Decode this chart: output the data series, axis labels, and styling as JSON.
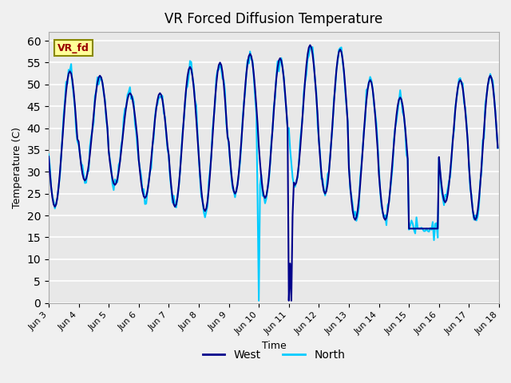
{
  "title": "VR Forced Diffusion Temperature",
  "ylabel": "Temperature (C)",
  "xlabel": "Time",
  "ylim": [
    0,
    62
  ],
  "xlim": [
    0,
    360
  ],
  "label_box_text": "VR_fd",
  "label_box_bg": "#FFFF99",
  "label_box_fg": "#990000",
  "west_color": "#00008B",
  "north_color": "#00CCFF",
  "legend_west": "West",
  "legend_north": "North",
  "bg_color": "#E8E8E8",
  "grid_color": "#FFFFFF",
  "xtick_labels": [
    "Jun 3",
    "Jun 4",
    "Jun 5",
    "Jun 6",
    "Jun 7",
    "Jun 8",
    "Jun 9",
    "Jun 10",
    "Jun 11",
    "Jun 12",
    "Jun 13",
    "Jun 14",
    "Jun 15",
    "Jun 16",
    "Jun 17",
    "Jun 18"
  ],
  "xtick_positions": [
    0,
    24,
    48,
    72,
    96,
    120,
    144,
    168,
    192,
    216,
    240,
    264,
    288,
    312,
    336,
    360
  ]
}
